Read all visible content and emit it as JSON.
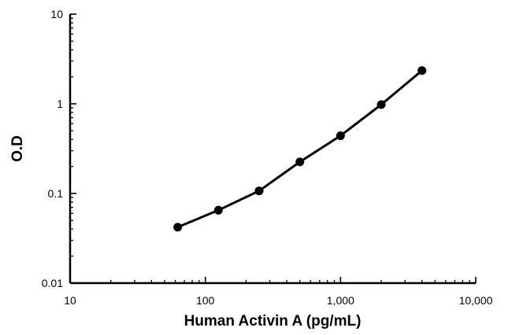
{
  "chart_data": {
    "type": "line",
    "title": "",
    "xlabel": "Human Activin A (pg/mL)",
    "ylabel": "O.D",
    "x_scale": "log",
    "y_scale": "log",
    "xlim": [
      10,
      10000
    ],
    "ylim": [
      0.01,
      10
    ],
    "x_ticks": [
      {
        "value": 10,
        "label": "10"
      },
      {
        "value": 100,
        "label": "100"
      },
      {
        "value": 1000,
        "label": "1,000"
      },
      {
        "value": 10000,
        "label": "10,000"
      }
    ],
    "y_ticks": [
      {
        "value": 0.01,
        "label": "0.01"
      },
      {
        "value": 0.1,
        "label": "0.1"
      },
      {
        "value": 1,
        "label": "1"
      },
      {
        "value": 10,
        "label": "10"
      }
    ],
    "grid": false,
    "legend": "none",
    "series": [
      {
        "color": "#000000",
        "marker": "circle",
        "x": [
          62.5,
          125,
          250,
          500,
          1000,
          2000,
          4000
        ],
        "y": [
          0.042,
          0.065,
          0.107,
          0.225,
          0.44,
          0.98,
          2.35
        ]
      }
    ]
  }
}
